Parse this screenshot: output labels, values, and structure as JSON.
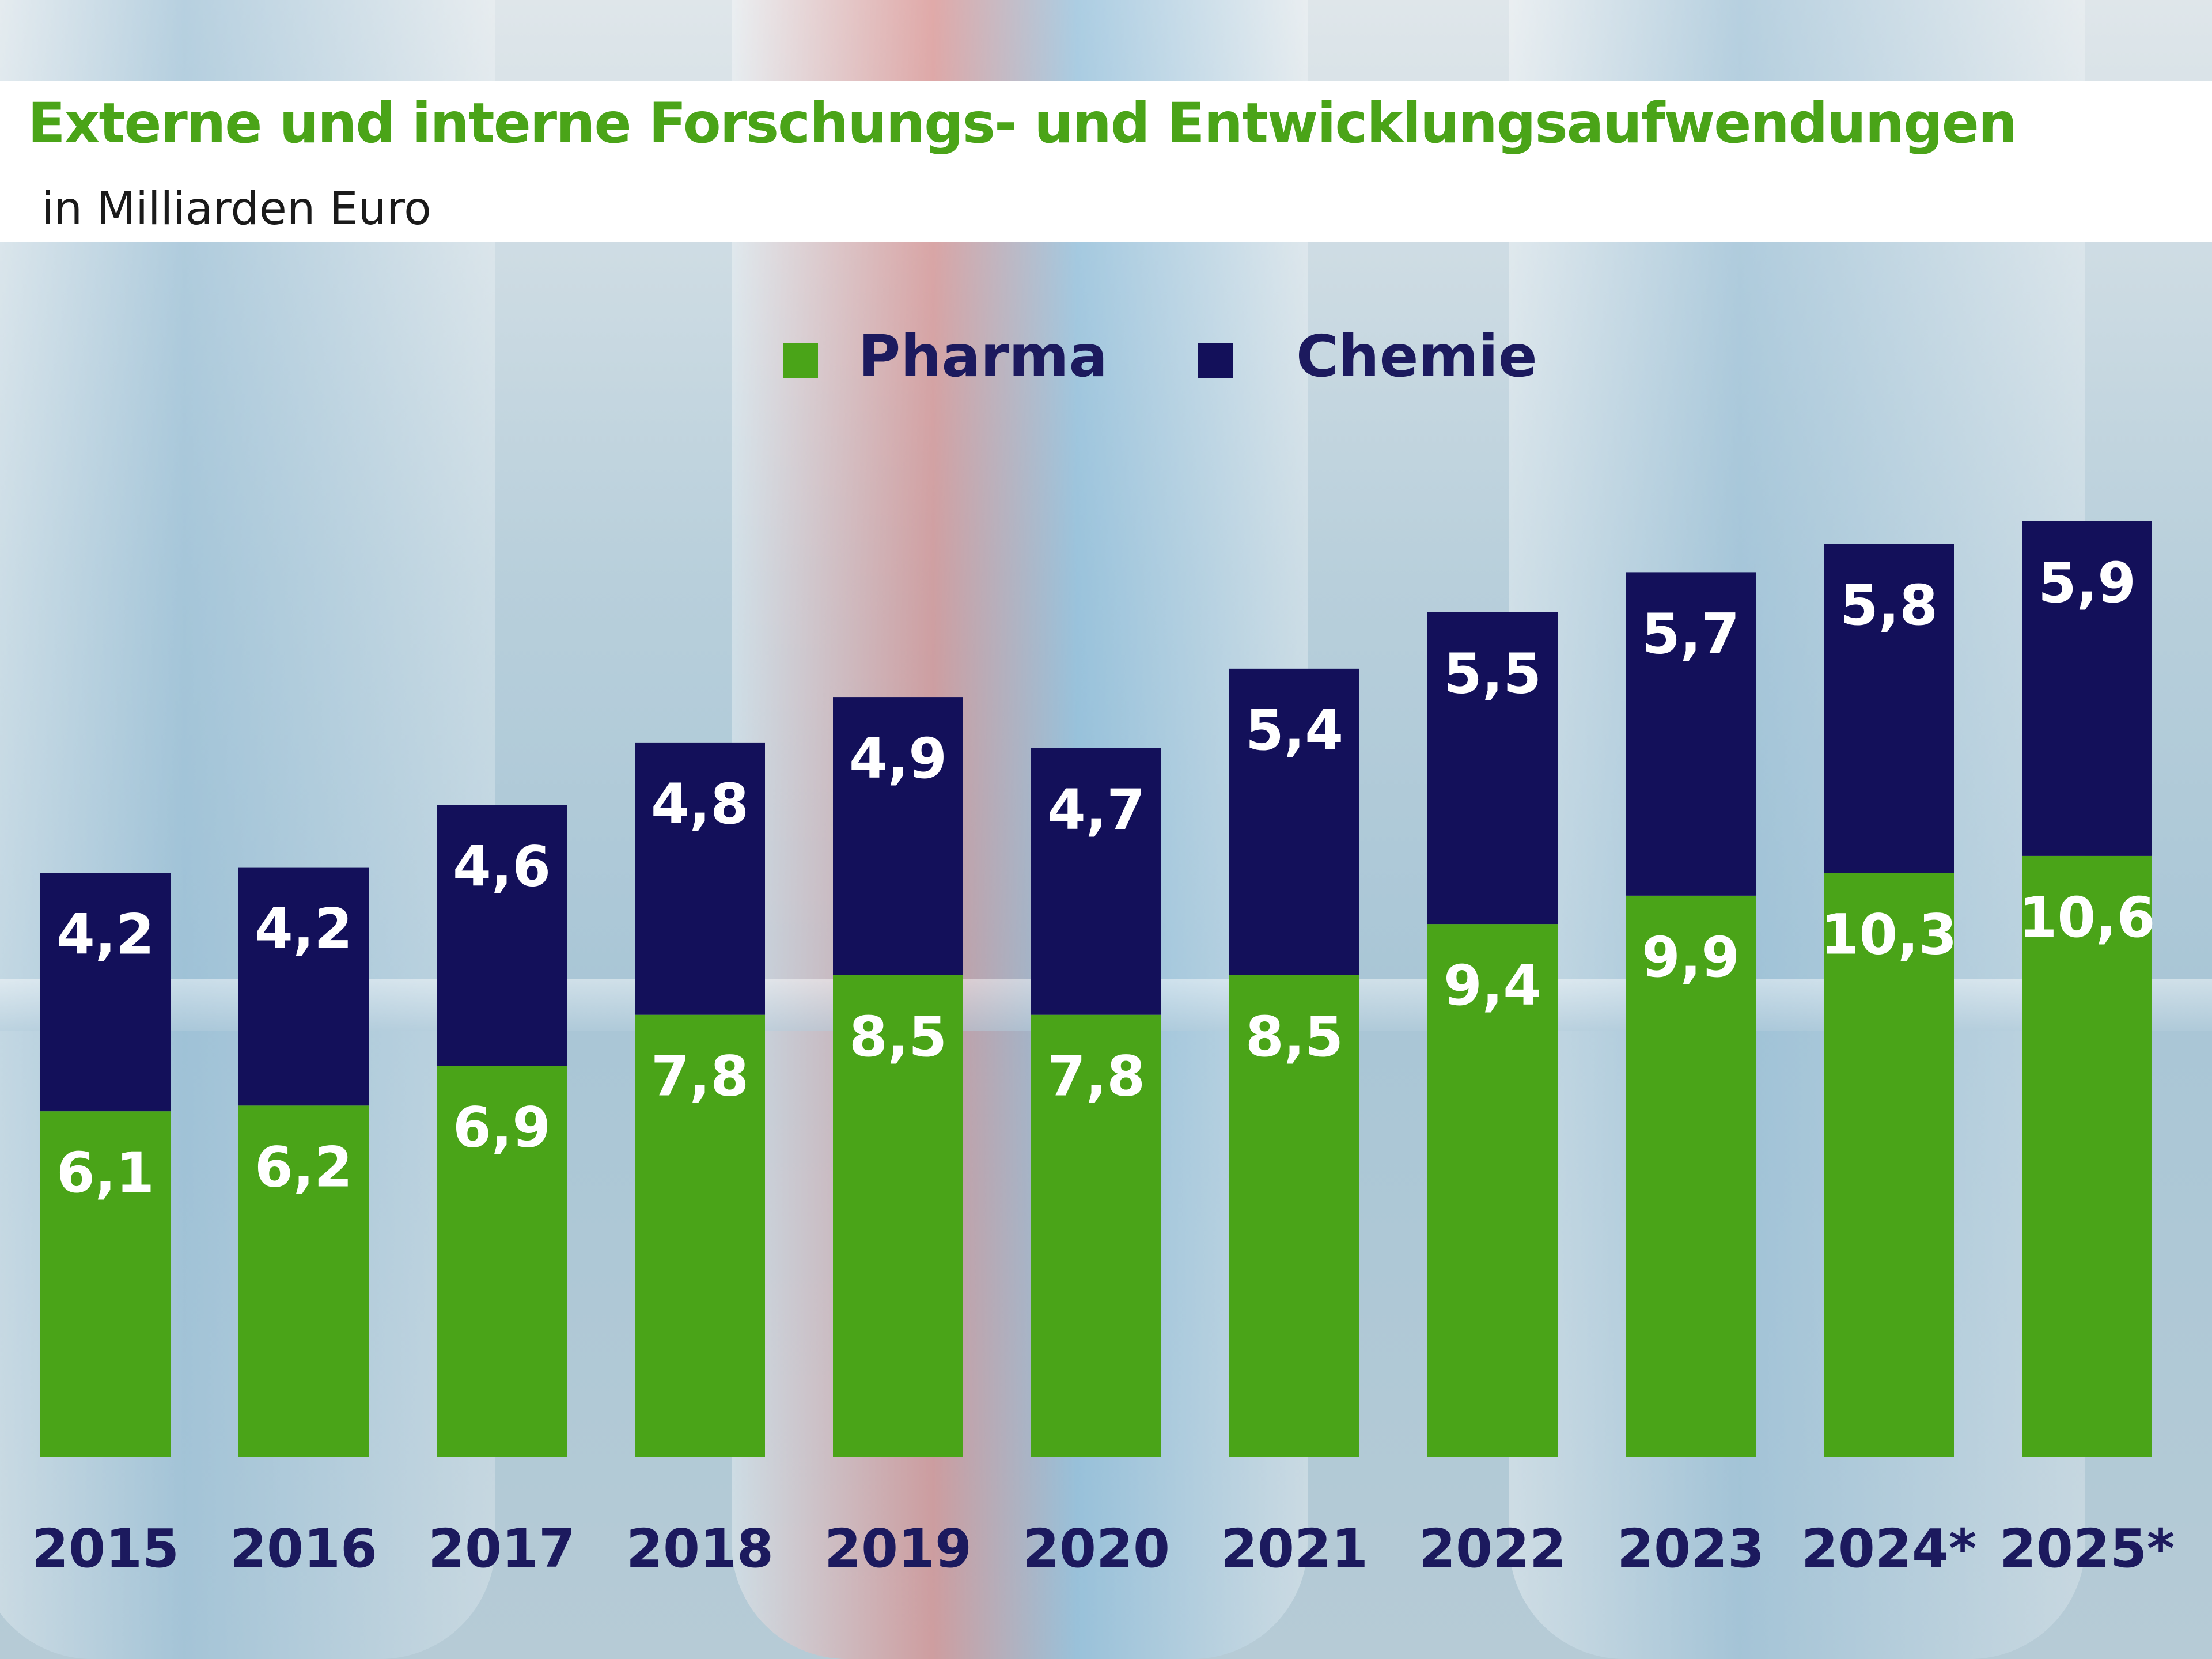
{
  "header": {
    "title": "Externe und interne Forschungs- und Entwicklungsaufwendungen",
    "subtitle": "in Milliarden Euro"
  },
  "legend": [
    {
      "name": "Pharma",
      "color": "#4aa418"
    },
    {
      "name": "Chemie",
      "color": "#13105a"
    }
  ],
  "colors": {
    "title": "#4aa418",
    "pharma": "#4aa418",
    "chemie": "#13105a",
    "tick_text": "#1c1a5e"
  },
  "chart_data": {
    "type": "bar",
    "stacked": true,
    "title": "Externe und interne Forschungs- und Entwicklungsaufwendungen",
    "subtitle": "in Milliarden Euro",
    "categories": [
      "2015",
      "2016",
      "2017",
      "2018",
      "2019",
      "2020",
      "2021",
      "2022",
      "2023",
      "2024*",
      "2025*"
    ],
    "series": [
      {
        "name": "Pharma",
        "values": [
          6.1,
          6.2,
          6.9,
          7.8,
          8.5,
          7.8,
          8.5,
          9.4,
          9.9,
          10.3,
          10.6
        ],
        "labels": [
          "6,1",
          "6,2",
          "6,9",
          "7,8",
          "8,5",
          "7,8",
          "8,5",
          "9,4",
          "9,9",
          "10,3",
          "10,6"
        ]
      },
      {
        "name": "Chemie",
        "values": [
          4.2,
          4.2,
          4.6,
          4.8,
          4.9,
          4.7,
          5.4,
          5.5,
          5.7,
          5.8,
          5.9
        ],
        "labels": [
          "4,2",
          "4,2",
          "4,6",
          "4,8",
          "4,9",
          "4,7",
          "5,4",
          "5,5",
          "5,7",
          "5,8",
          "5,9"
        ]
      }
    ],
    "legend_position": "top-center",
    "grid": false,
    "axes_visible": false,
    "ylim": [
      0,
      17
    ]
  }
}
